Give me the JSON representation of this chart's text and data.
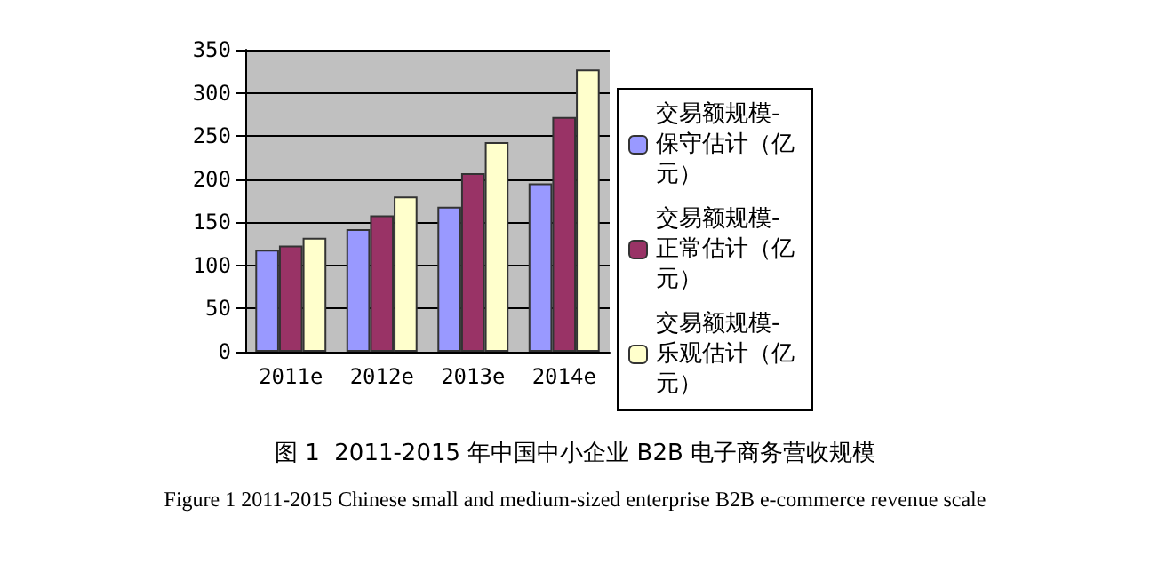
{
  "chart_data": {
    "type": "bar",
    "title": "图 1  2011-2015 年中国中小企业 B2B 电子商务营收规模",
    "subtitle": "Figure 1 2011-2015 Chinese small and medium-sized enterprise B2B e-commerce revenue scale",
    "categories": [
      "2011e",
      "2012e",
      "2013e",
      "2014e"
    ],
    "series": [
      {
        "name": "交易额规模-保守估计（亿元）",
        "color": "#9999ff",
        "values": [
          118,
          142,
          168,
          195
        ]
      },
      {
        "name": "交易额规模-正常估计（亿元）",
        "color": "#993366",
        "values": [
          123,
          158,
          207,
          272
        ]
      },
      {
        "name": "交易额规模-乐观估计（亿元）",
        "color": "#ffffcc",
        "values": [
          132,
          180,
          243,
          327
        ]
      }
    ],
    "ylim": [
      0,
      350
    ],
    "yticks": [
      0,
      50,
      100,
      150,
      200,
      250,
      300,
      350
    ],
    "grid": "y",
    "legend": "right"
  }
}
